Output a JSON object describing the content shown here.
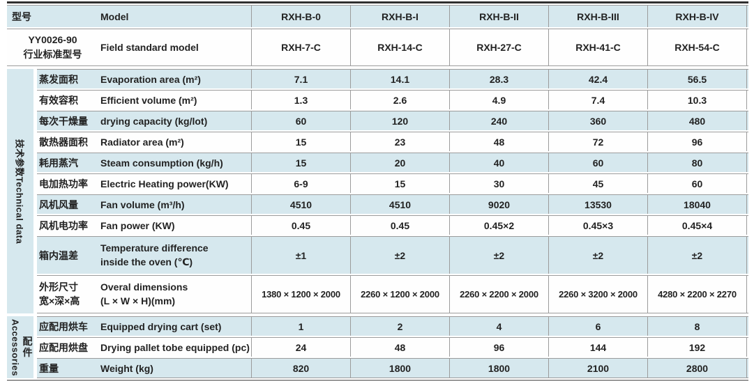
{
  "colors": {
    "row_blue": "#d6e8ee",
    "grid_line": "#9b9b9b",
    "top_border": "#2f2f2f",
    "bottom_border": "#9b9b9b",
    "text": "#222222"
  },
  "header": {
    "model_label_zh": "型号",
    "model_label_en": "Model",
    "models": [
      "RXH-B-0",
      "RXH-B-I",
      "RXH-B-II",
      "RXH-B-III",
      "RXH-B-IV"
    ],
    "std_label_line1": "YY0026-90",
    "std_label_line2": "行业标准型号",
    "std_label_en": "Field standard model",
    "std_models": [
      "RXH-7-C",
      "RXH-14-C",
      "RXH-27-C",
      "RXH-41-C",
      "RXH-54-C"
    ]
  },
  "groups": {
    "tech": {
      "zh": "技术参数",
      "en": "Technical data"
    },
    "acc": {
      "zh": "配件",
      "en": "Accessories"
    }
  },
  "tech": [
    {
      "zh": "蒸发面积",
      "en": "Evaporation area (m²)",
      "v": [
        "7.1",
        "14.1",
        "28.3",
        "42.4",
        "56.5"
      ]
    },
    {
      "zh": "有效容积",
      "en": "Efficient volume (m²)",
      "v": [
        "1.3",
        "2.6",
        "4.9",
        "7.4",
        "10.3"
      ]
    },
    {
      "zh": "每次干燥量",
      "en": "drying capacity (kg/lot)",
      "v": [
        "60",
        "120",
        "240",
        "360",
        "480"
      ]
    },
    {
      "zh": "散热器面积",
      "en": "Radiator area (m²)",
      "v": [
        "15",
        "23",
        "48",
        "72",
        "96"
      ]
    },
    {
      "zh": "耗用蒸汽",
      "en": "Steam consumption (kg/h)",
      "v": [
        "15",
        "20",
        "40",
        "60",
        "80"
      ]
    },
    {
      "zh": "电加热功率",
      "en": "Electric Heating power(KW)",
      "v": [
        "6-9",
        "15",
        "30",
        "45",
        "60"
      ]
    },
    {
      "zh": "风机风量",
      "en": "Fan volume (m³/h)",
      "v": [
        "4510",
        "4510",
        "9020",
        "13530",
        "18040"
      ]
    },
    {
      "zh": "风机电功率",
      "en": "Fan power (KW)",
      "v": [
        "0.45",
        "0.45",
        "0.45×2",
        "0.45×3",
        "0.45×4"
      ]
    },
    {
      "zh": "箱内温差",
      "en": "Temperature difference",
      "en2": "inside the oven (℃)",
      "v": [
        "±1",
        "±2",
        "±2",
        "±2",
        "±2"
      ]
    },
    {
      "zh": "外形尺寸",
      "zh2": "宽×深×高",
      "en": "Overal dimensions",
      "en2": "(L × W × H)(mm)",
      "v": [
        "1380 × 1200 × 2000",
        "2260 × 1200 × 2000",
        "2260 × 2200 × 2000",
        "2260 × 3200 × 2000",
        "4280 × 2200 × 2270"
      ]
    }
  ],
  "acc": [
    {
      "zh": "应配用烘车",
      "en": "Equipped drying cart (set)",
      "v": [
        "1",
        "2",
        "4",
        "6",
        "8"
      ]
    },
    {
      "zh": "应配用烘盘",
      "en": "Drying pallet tobe equipped (pc)",
      "v": [
        "24",
        "48",
        "96",
        "144",
        "192"
      ]
    },
    {
      "zh": "重量",
      "en": "Weight (kg)",
      "v": [
        "820",
        "1800",
        "1800",
        "2100",
        "2800"
      ]
    }
  ]
}
